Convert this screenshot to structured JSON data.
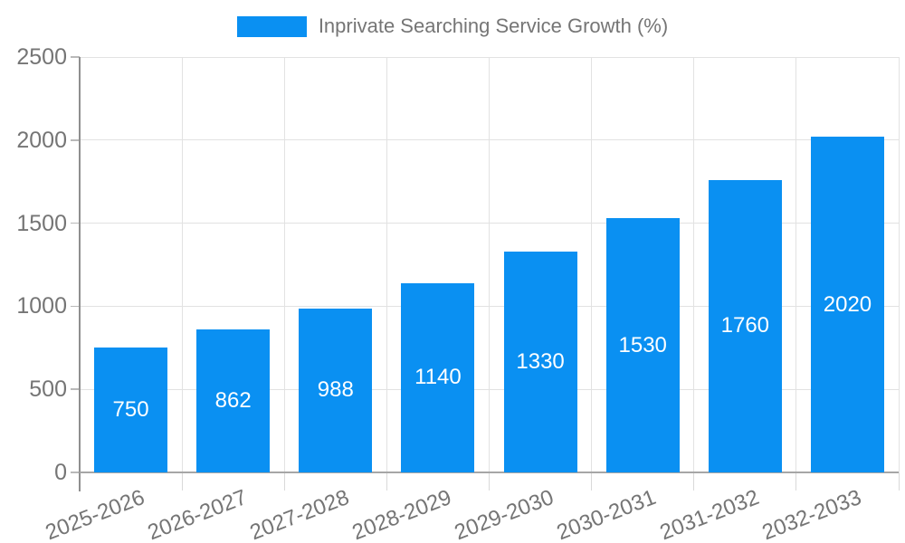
{
  "legend": {
    "label": "Inprivate Searching Service Growth (%)"
  },
  "chart_data": {
    "type": "bar",
    "title": "Inprivate Searching Service Growth (%)",
    "series_name": "Inprivate Searching Service Growth (%)",
    "categories": [
      "2025-2026",
      "2026-2027",
      "2027-2028",
      "2028-2029",
      "2029-2030",
      "2030-2031",
      "2031-2032",
      "2032-2033"
    ],
    "values": [
      750,
      862,
      988,
      1140,
      1330,
      1530,
      1760,
      2020
    ],
    "xlabel": "",
    "ylabel": "",
    "ylim": [
      0,
      2500
    ],
    "yticks": [
      0,
      500,
      1000,
      1500,
      2000,
      2500
    ],
    "grid": true,
    "legend_position": "top-center",
    "x_tick_rotation_deg": 21,
    "value_labels": "inside-center"
  },
  "colors": {
    "bar": "#0a90f2",
    "value_label": "#ffffff",
    "axis_text": "#757575",
    "grid": "#e2e2e2",
    "y_axis_line": "#8f8f8f",
    "x_axis_line": "#a6a6a6",
    "y_tick": "#b9b9b9",
    "x_tick_stub": "#d9d9d9",
    "background": "#ffffff"
  }
}
